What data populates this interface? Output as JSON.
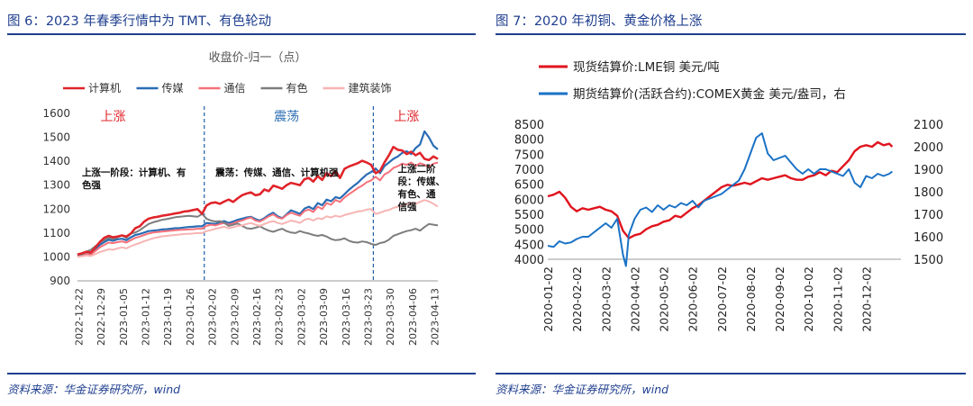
{
  "left": {
    "figure_title": "图 6：2023 年春季行情中为 TMT、有色轮动",
    "source": "资料来源：华金证券研究所，wind",
    "chart_data": {
      "type": "line",
      "title": "收盘价-归一（点）",
      "x_ticks": [
        "2022-12-22",
        "2022-12-29",
        "2023-01-05",
        "2023-01-12",
        "2023-01-19",
        "2023-01-26",
        "2023-02-02",
        "2023-02-09",
        "2023-02-16",
        "2023-02-23",
        "2023-03-02",
        "2023-03-09",
        "2023-03-16",
        "2023-03-23",
        "2023-03-30",
        "2023-04-06",
        "2023-04-13"
      ],
      "ylim": [
        900,
        1600
      ],
      "y_ticks": [
        900,
        1000,
        1100,
        1200,
        1300,
        1400,
        1500,
        1600
      ],
      "xlim": [
        0,
        81
      ],
      "legend_position": "top",
      "phase_dividers": [
        28.5,
        66.5
      ],
      "phases": [
        {
          "label": "上涨",
          "color": "#e0242a",
          "at": 8
        },
        {
          "label": "震荡",
          "color": "#2f6fb3",
          "at": 47
        },
        {
          "label": "上涨",
          "color": "#e0242a",
          "at": 74
        }
      ],
      "annotations": [
        {
          "lines": [
            "上涨一阶段：计算机、有",
            "色强"
          ],
          "x": 1,
          "y": 1340
        },
        {
          "lines": [
            "震荡：传媒、通信、计算机强"
          ],
          "x": 31,
          "y": 1340
        },
        {
          "lines": [
            "上涨二阶",
            "段：传媒、",
            "有色、通",
            "信强"
          ],
          "x": 72,
          "y": 1355
        }
      ],
      "series": [
        {
          "name": "计算机",
          "color": "#e0242a",
          "width": 2.4,
          "values": [
            1010,
            1015,
            1022,
            1018,
            1040,
            1062,
            1080,
            1088,
            1082,
            1085,
            1090,
            1085,
            1098,
            1120,
            1128,
            1148,
            1160,
            1165,
            1168,
            1172,
            1175,
            1178,
            1182,
            1185,
            1190,
            1192,
            1196,
            1200,
            1180,
            1215,
            1225,
            1228,
            1222,
            1232,
            1240,
            1230,
            1245,
            1258,
            1265,
            1270,
            1258,
            1262,
            1282,
            1275,
            1298,
            1292,
            1285,
            1300,
            1310,
            1305,
            1300,
            1325,
            1330,
            1315,
            1338,
            1322,
            1350,
            1338,
            1360,
            1330,
            1368,
            1378,
            1385,
            1392,
            1402,
            1395,
            1385,
            1350,
            1360,
            1395,
            1425,
            1460,
            1448,
            1445,
            1430,
            1440,
            1425,
            1435,
            1410,
            1405,
            1420,
            1410
          ]
        },
        {
          "name": "传媒",
          "color": "#2a6db5",
          "width": 2.2,
          "values": [
            1008,
            1012,
            1020,
            1015,
            1032,
            1050,
            1062,
            1072,
            1068,
            1074,
            1076,
            1070,
            1082,
            1092,
            1096,
            1102,
            1108,
            1110,
            1112,
            1115,
            1116,
            1118,
            1120,
            1121,
            1123,
            1125,
            1126,
            1128,
            1128,
            1142,
            1140,
            1138,
            1145,
            1150,
            1142,
            1148,
            1155,
            1160,
            1165,
            1168,
            1158,
            1152,
            1162,
            1176,
            1185,
            1170,
            1162,
            1178,
            1195,
            1188,
            1180,
            1202,
            1210,
            1200,
            1225,
            1216,
            1240,
            1233,
            1250,
            1245,
            1262,
            1280,
            1296,
            1310,
            1328,
            1345,
            1355,
            1370,
            1350,
            1380,
            1395,
            1410,
            1420,
            1435,
            1442,
            1430,
            1455,
            1470,
            1525,
            1500,
            1465,
            1450
          ]
        },
        {
          "name": "通信",
          "color": "#f5707a",
          "width": 2.0,
          "values": [
            1005,
            1008,
            1012,
            1010,
            1025,
            1040,
            1050,
            1060,
            1058,
            1062,
            1065,
            1060,
            1070,
            1080,
            1085,
            1092,
            1098,
            1102,
            1104,
            1106,
            1108,
            1110,
            1112,
            1113,
            1114,
            1115,
            1116,
            1118,
            1118,
            1130,
            1135,
            1132,
            1138,
            1142,
            1135,
            1140,
            1148,
            1152,
            1160,
            1165,
            1152,
            1148,
            1158,
            1170,
            1178,
            1165,
            1160,
            1175,
            1185,
            1178,
            1172,
            1192,
            1198,
            1188,
            1210,
            1200,
            1225,
            1218,
            1238,
            1230,
            1248,
            1262,
            1275,
            1288,
            1298,
            1312,
            1320,
            1335,
            1320,
            1345,
            1355,
            1372,
            1380,
            1390,
            1385,
            1395,
            1380,
            1392,
            1385,
            1375,
            1390,
            1395
          ]
        },
        {
          "name": "有色",
          "color": "#7d7d7d",
          "width": 2.0,
          "values": [
            1005,
            1010,
            1022,
            1030,
            1045,
            1060,
            1070,
            1080,
            1075,
            1082,
            1090,
            1080,
            1098,
            1102,
            1112,
            1125,
            1138,
            1145,
            1150,
            1155,
            1158,
            1162,
            1166,
            1168,
            1170,
            1172,
            1170,
            1168,
            1180,
            1160,
            1152,
            1148,
            1150,
            1142,
            1130,
            1135,
            1140,
            1130,
            1120,
            1118,
            1122,
            1128,
            1118,
            1110,
            1105,
            1112,
            1118,
            1108,
            1102,
            1100,
            1108,
            1102,
            1098,
            1092,
            1088,
            1092,
            1085,
            1075,
            1070,
            1072,
            1078,
            1068,
            1062,
            1060,
            1065,
            1062,
            1055,
            1050,
            1058,
            1062,
            1072,
            1088,
            1095,
            1102,
            1108,
            1112,
            1118,
            1110,
            1125,
            1138,
            1135,
            1132
          ]
        },
        {
          "name": "建筑装饰",
          "color": "#f7b4b4",
          "width": 2.0,
          "values": [
            1000,
            1003,
            1006,
            1004,
            1012,
            1020,
            1026,
            1032,
            1030,
            1036,
            1040,
            1036,
            1045,
            1052,
            1058,
            1066,
            1072,
            1078,
            1082,
            1086,
            1088,
            1090,
            1092,
            1094,
            1096,
            1097,
            1098,
            1100,
            1100,
            1108,
            1112,
            1118,
            1122,
            1126,
            1120,
            1124,
            1130,
            1132,
            1138,
            1142,
            1135,
            1130,
            1138,
            1145,
            1150,
            1142,
            1138,
            1145,
            1152,
            1148,
            1142,
            1155,
            1160,
            1152,
            1162,
            1158,
            1170,
            1165,
            1172,
            1168,
            1175,
            1180,
            1185,
            1190,
            1192,
            1198,
            1200,
            1180,
            1185,
            1192,
            1196,
            1205,
            1210,
            1215,
            1220,
            1225,
            1222,
            1230,
            1238,
            1232,
            1222,
            1210
          ]
        }
      ]
    }
  },
  "right": {
    "figure_title": "图 7：2020 年初铜、黄金价格上涨",
    "source": "资料来源：华金证券研究所，wind",
    "chart_data": {
      "type": "line",
      "title": "",
      "x_ticks": [
        "2020-01-02",
        "2020-02-02",
        "2020-03-02",
        "2020-04-02",
        "2020-05-02",
        "2020-06-02",
        "2020-07-02",
        "2020-08-02",
        "2020-09-02",
        "2020-10-02",
        "2020-11-02",
        "2020-12-02"
      ],
      "ylim_left": [
        4000,
        8500
      ],
      "y_ticks_left": [
        4000,
        4500,
        5000,
        5500,
        6000,
        6500,
        7000,
        7500,
        8000,
        8500
      ],
      "ylim_right": [
        1500,
        2100
      ],
      "y_ticks_right": [
        1500,
        1600,
        1700,
        1800,
        1900,
        2000,
        2100
      ],
      "xlim": [
        0,
        12.2
      ],
      "legend_position": "top",
      "series": [
        {
          "name": "现货结算价:LME铜 美元/吨",
          "axis": "left",
          "color": "#e0141e",
          "width": 2.4,
          "x": [
            0,
            0.2,
            0.4,
            0.6,
            0.8,
            1.0,
            1.2,
            1.4,
            1.6,
            1.8,
            2.0,
            2.2,
            2.4,
            2.6,
            2.8,
            3.0,
            3.2,
            3.4,
            3.6,
            3.8,
            4.0,
            4.2,
            4.4,
            4.6,
            4.8,
            5.0,
            5.2,
            5.4,
            5.6,
            5.8,
            6.0,
            6.2,
            6.4,
            6.6,
            6.8,
            7.0,
            7.2,
            7.4,
            7.6,
            7.8,
            8.0,
            8.2,
            8.4,
            8.6,
            8.8,
            9.0,
            9.2,
            9.4,
            9.6,
            9.8,
            10.0,
            10.2,
            10.4,
            10.6,
            10.8,
            11.0,
            11.2,
            11.4,
            11.6,
            11.8,
            11.9
          ],
          "y": [
            6100,
            6150,
            6250,
            6050,
            5750,
            5600,
            5700,
            5650,
            5700,
            5750,
            5650,
            5600,
            5450,
            4950,
            4700,
            4800,
            4850,
            5000,
            5100,
            5150,
            5250,
            5300,
            5450,
            5400,
            5550,
            5700,
            5800,
            5950,
            6100,
            6250,
            6400,
            6480,
            6450,
            6500,
            6550,
            6500,
            6600,
            6700,
            6650,
            6700,
            6750,
            6800,
            6700,
            6650,
            6650,
            6750,
            6800,
            6900,
            6800,
            6950,
            6900,
            7100,
            7300,
            7600,
            7750,
            7800,
            7750,
            7900,
            7800,
            7850,
            7750
          ]
        },
        {
          "name": "期货结算价(活跃合约):COMEX黄金 美元/盎司，右",
          "axis": "right",
          "color": "#1a72c5",
          "width": 2.0,
          "x": [
            0,
            0.2,
            0.4,
            0.6,
            0.8,
            1.0,
            1.2,
            1.4,
            1.6,
            1.8,
            2.0,
            2.2,
            2.4,
            2.6,
            2.7,
            2.8,
            3.0,
            3.2,
            3.4,
            3.6,
            3.8,
            4.0,
            4.2,
            4.4,
            4.6,
            4.8,
            5.0,
            5.2,
            5.4,
            5.6,
            5.8,
            6.0,
            6.2,
            6.4,
            6.6,
            6.8,
            7.0,
            7.2,
            7.4,
            7.6,
            7.8,
            8.0,
            8.2,
            8.4,
            8.6,
            8.8,
            9.0,
            9.2,
            9.4,
            9.6,
            9.8,
            10.0,
            10.2,
            10.4,
            10.6,
            10.8,
            11.0,
            11.2,
            11.4,
            11.6,
            11.8,
            11.9
          ],
          "y": [
            1560,
            1555,
            1580,
            1570,
            1575,
            1590,
            1600,
            1600,
            1620,
            1640,
            1660,
            1640,
            1680,
            1520,
            1470,
            1610,
            1680,
            1720,
            1730,
            1710,
            1740,
            1720,
            1740,
            1730,
            1750,
            1740,
            1760,
            1730,
            1760,
            1770,
            1780,
            1790,
            1810,
            1830,
            1850,
            1900,
            1970,
            2040,
            2060,
            1970,
            1940,
            1950,
            1960,
            1930,
            1900,
            1880,
            1900,
            1880,
            1900,
            1900,
            1890,
            1880,
            1870,
            1900,
            1840,
            1820,
            1870,
            1860,
            1880,
            1870,
            1880,
            1890
          ]
        }
      ]
    }
  }
}
